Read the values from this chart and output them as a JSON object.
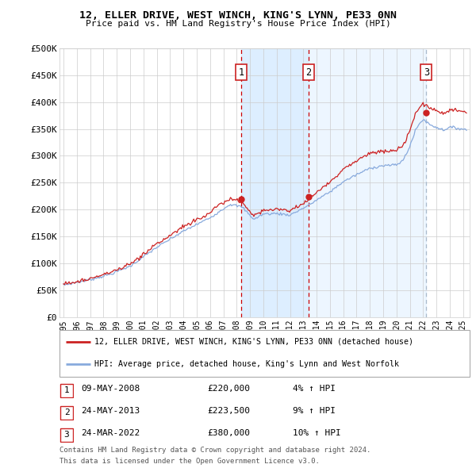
{
  "title1": "12, ELLER DRIVE, WEST WINCH, KING'S LYNN, PE33 0NN",
  "title2": "Price paid vs. HM Land Registry's House Price Index (HPI)",
  "ylim": [
    0,
    500000
  ],
  "yticks": [
    0,
    50000,
    100000,
    150000,
    200000,
    250000,
    300000,
    350000,
    400000,
    450000,
    500000
  ],
  "ytick_labels": [
    "£0",
    "£50K",
    "£100K",
    "£150K",
    "£200K",
    "£250K",
    "£300K",
    "£350K",
    "£400K",
    "£450K",
    "£500K"
  ],
  "xlim_start": 1994.7,
  "xlim_end": 2025.5,
  "xtick_years": [
    1995,
    1996,
    1997,
    1998,
    1999,
    2000,
    2001,
    2002,
    2003,
    2004,
    2005,
    2006,
    2007,
    2008,
    2009,
    2010,
    2011,
    2012,
    2013,
    2014,
    2015,
    2016,
    2017,
    2018,
    2019,
    2020,
    2021,
    2022,
    2023,
    2024,
    2025
  ],
  "sale_dates": [
    2008.356,
    2013.389,
    2022.228
  ],
  "sale_prices": [
    220000,
    223500,
    380000
  ],
  "sale_labels": [
    "1",
    "2",
    "3"
  ],
  "shade_color": "#ddeeff",
  "legend_entries": [
    "12, ELLER DRIVE, WEST WINCH, KING'S LYNN, PE33 0NN (detached house)",
    "HPI: Average price, detached house, King's Lynn and West Norfolk"
  ],
  "legend_line_colors": [
    "#cc2222",
    "#88aadd"
  ],
  "table_rows": [
    [
      "1",
      "09-MAY-2008",
      "£220,000",
      "4% ↑ HPI"
    ],
    [
      "2",
      "24-MAY-2013",
      "£223,500",
      "9% ↑ HPI"
    ],
    [
      "3",
      "24-MAR-2022",
      "£380,000",
      "10% ↑ HPI"
    ]
  ],
  "footnote1": "Contains HM Land Registry data © Crown copyright and database right 2024.",
  "footnote2": "This data is licensed under the Open Government Licence v3.0.",
  "bg_color": "#ffffff",
  "grid_color": "#cccccc",
  "red_line_color": "#cc2222",
  "blue_line_color": "#88aadd"
}
